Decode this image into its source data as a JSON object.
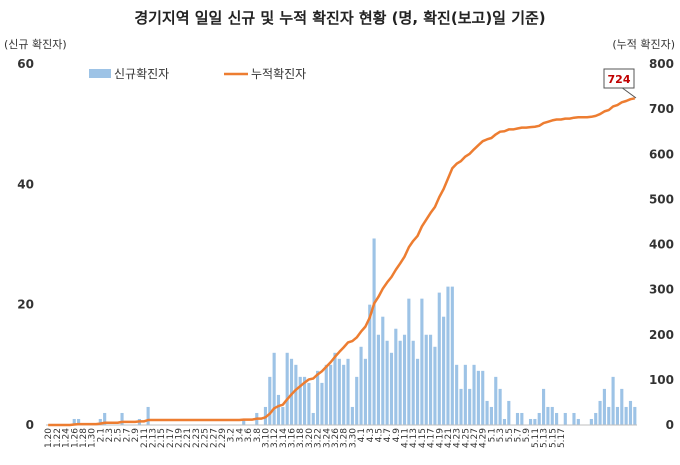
{
  "chart_data": {
    "type": "bar+line",
    "title": "경기지역 일일 신규 및 누적 확진자 현황 (명, 확진(보고)일 기준)",
    "y_left_label": "(신규 확진자)",
    "y_right_label": "(누적 확진자)",
    "y_left_range": [
      0,
      60
    ],
    "y_left_ticks": [
      "0",
      "20",
      "40",
      "60"
    ],
    "y_right_range": [
      0,
      800
    ],
    "y_right_ticks": [
      "0",
      "100",
      "200",
      "300",
      "400",
      "500",
      "600",
      "700",
      "800"
    ],
    "x_tick_labels": [
      "1.20",
      "1.22",
      "1.24",
      "1.26",
      "1.28",
      "1.30",
      "2.1",
      "2.3",
      "2.5",
      "2.7",
      "2.9",
      "2.11",
      "2.13",
      "2.15",
      "2.17",
      "2.19",
      "2.21",
      "2.23",
      "2.25",
      "2.27",
      "2.29",
      "3.2",
      "3.4",
      "3.6",
      "3.8",
      "3.10",
      "3.12",
      "3.14",
      "3.16",
      "3.18",
      "3.20",
      "3.22",
      "3.24",
      "3.26",
      "3.28",
      "3.30",
      "4.1",
      "4.3",
      "4.5",
      "4.7",
      "4.9",
      "4.11",
      "4.13",
      "4.15",
      "4.17",
      "4.19",
      "4.21",
      "4.23",
      "4.25",
      "4.27",
      "4.29",
      "5.1",
      "5.3",
      "5.5",
      "5.7",
      "5.9",
      "5.11",
      "5.13",
      "5.15",
      "5.17"
    ],
    "legend": {
      "bar": "신규확진자",
      "line": "누적확진자"
    },
    "grid": false,
    "series": [
      {
        "name": "신규확진자",
        "type": "bar",
        "axis": "left",
        "color": "#9dc3e6",
        "values": [
          0,
          0,
          0,
          0,
          0,
          0,
          1,
          1,
          0,
          0,
          0,
          0,
          1,
          2,
          0,
          0,
          0,
          2,
          0,
          0,
          0,
          1,
          0,
          3,
          0,
          0,
          0,
          0,
          0,
          0,
          0,
          0,
          0,
          0,
          0,
          0,
          0,
          0,
          0,
          0,
          0,
          0,
          0,
          0,
          0,
          1,
          0,
          0,
          2,
          0,
          3,
          8,
          12,
          5,
          3,
          12,
          11,
          10,
          8,
          8,
          7,
          2,
          9,
          7,
          10,
          10,
          12,
          11,
          10,
          11,
          3,
          8,
          13,
          11,
          20,
          31,
          15,
          18,
          14,
          12,
          16,
          14,
          15,
          21,
          14,
          11,
          21,
          15,
          15,
          13,
          22,
          18,
          23,
          23,
          10,
          6,
          10,
          6,
          10,
          9,
          9,
          4,
          3,
          8,
          6,
          1,
          4,
          0,
          2,
          2,
          0,
          1,
          1,
          2,
          6,
          3,
          3,
          2,
          0,
          2,
          0,
          2,
          1,
          0,
          0,
          1,
          2,
          4,
          6,
          3,
          8,
          3,
          6,
          3,
          4,
          3
        ]
      },
      {
        "name": "누적확진자",
        "type": "line",
        "axis": "right",
        "color": "#ed7d31",
        "values": [
          0,
          0,
          0,
          0,
          0,
          0,
          1,
          2,
          2,
          2,
          2,
          2,
          3,
          5,
          5,
          5,
          5,
          7,
          7,
          7,
          7,
          8,
          8,
          11,
          11,
          11,
          11,
          11,
          11,
          11,
          11,
          11,
          11,
          11,
          11,
          11,
          11,
          11,
          11,
          11,
          11,
          11,
          11,
          11,
          11,
          12,
          12,
          12,
          14,
          14,
          17,
          25,
          37,
          42,
          45,
          57,
          68,
          78,
          86,
          94,
          101,
          103,
          112,
          119,
          129,
          139,
          151,
          162,
          172,
          183,
          186,
          194,
          207,
          218,
          238,
          269,
          284,
          302,
          316,
          328,
          344,
          358,
          373,
          394,
          408,
          419,
          440,
          455,
          470,
          483,
          505,
          523,
          546,
          569,
          579,
          585,
          595,
          601,
          611,
          620,
          629,
          633,
          636,
          644,
          650,
          651,
          655,
          655,
          657,
          659,
          659,
          660,
          661,
          663,
          669,
          672,
          675,
          677,
          677,
          679,
          679,
          681,
          682,
          682,
          682,
          683,
          685,
          689,
          695,
          698,
          706,
          709,
          715,
          718,
          722,
          724
        ]
      }
    ],
    "annotation": "724"
  }
}
